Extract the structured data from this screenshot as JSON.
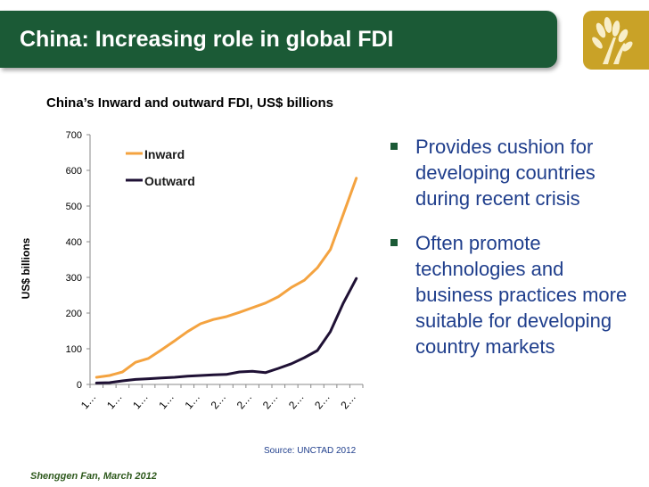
{
  "header": {
    "title": "China: Increasing role in global FDI"
  },
  "chart_data": {
    "type": "line",
    "title": "China’s Inward and outward FDI, US$ billions",
    "xlabel": "",
    "ylabel": "US$ billions",
    "ylim": [
      0,
      700
    ],
    "yticks": [
      0,
      100,
      200,
      300,
      400,
      500,
      600,
      700
    ],
    "categories": [
      "1…",
      "1…",
      "1…",
      "1…",
      "1…",
      "1…",
      "1…",
      "1…",
      "1…",
      "1…",
      "2…",
      "2…",
      "2…",
      "2…",
      "2…",
      "2…",
      "2…",
      "2…",
      "2…",
      "2…",
      "2…"
    ],
    "grid": false,
    "legend_position": "top-left",
    "series": [
      {
        "name": "Inward",
        "color": "#f4a340",
        "values": [
          20,
          25,
          35,
          62,
          73,
          97,
          122,
          148,
          170,
          182,
          190,
          202,
          215,
          228,
          246,
          272,
          292,
          327,
          378,
          477,
          578
        ]
      },
      {
        "name": "Outward",
        "color": "#1f1135",
        "values": [
          4,
          5,
          10,
          14,
          16,
          18,
          20,
          23,
          25,
          27,
          28,
          35,
          37,
          33,
          45,
          58,
          75,
          95,
          148,
          228,
          297
        ]
      }
    ]
  },
  "source": "Source: UNCTAD 2012",
  "bullets": [
    "Provides cushion for developing countries during recent crisis",
    "Often promote technologies and business practices more suitable for developing country markets"
  ],
  "footer": "Shenggen Fan, March 2012",
  "colors": {
    "title_bar": "#1b5a36",
    "logo_bg": "#c9a227",
    "bullet_text": "#1f3e8c"
  },
  "icons": {
    "logo": "wheat-logo-icon",
    "bullet": "square-bullet-icon"
  }
}
